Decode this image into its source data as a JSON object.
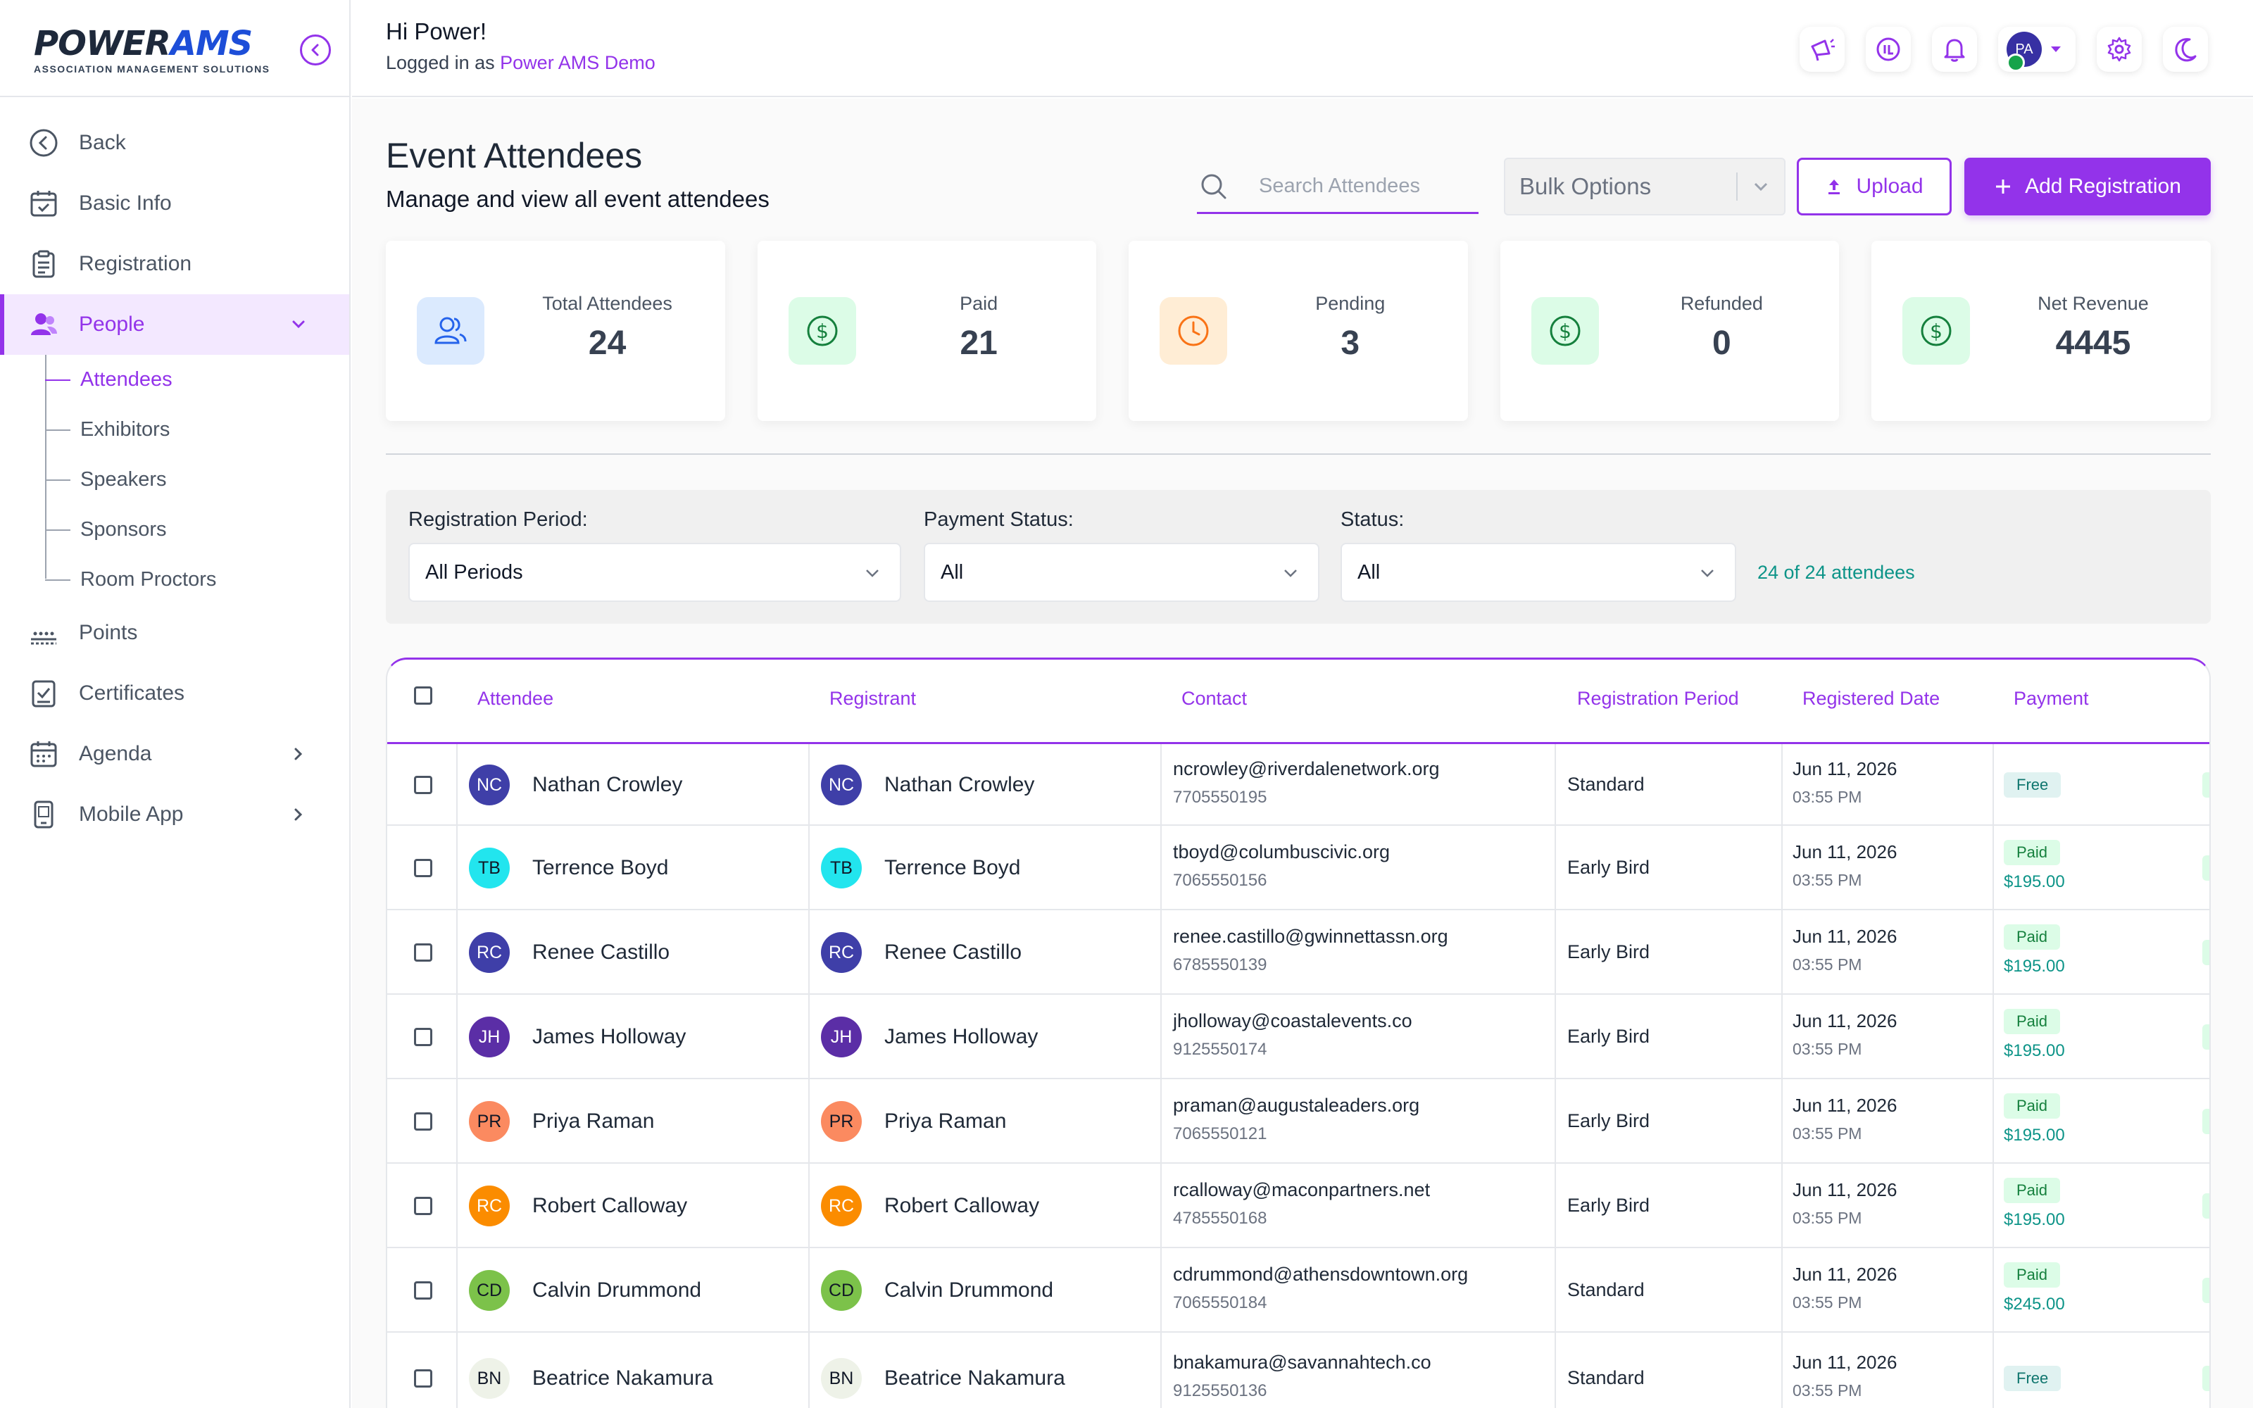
{
  "brand": {
    "name_part1": "POWER",
    "name_part2": "AMS",
    "tagline": "ASSOCIATION MANAGEMENT SOLUTIONS"
  },
  "header": {
    "greeting": "Hi Power!",
    "logged_in_prefix": "Logged in as",
    "logged_in_org": "Power AMS Demo",
    "avatar_initials": "PA"
  },
  "sidebar": {
    "items": [
      {
        "label": "Back",
        "icon": "back-circle-icon"
      },
      {
        "label": "Basic Info",
        "icon": "calendar-check-icon"
      },
      {
        "label": "Registration",
        "icon": "clipboard-icon"
      },
      {
        "label": "People",
        "icon": "people-icon"
      },
      {
        "label": "Points",
        "icon": "points-icon"
      },
      {
        "label": "Certificates",
        "icon": "certificate-icon"
      },
      {
        "label": "Agenda",
        "icon": "calendar-icon"
      },
      {
        "label": "Mobile App",
        "icon": "mobile-icon"
      }
    ],
    "people_sub": [
      "Attendees",
      "Exhibitors",
      "Speakers",
      "Sponsors",
      "Room Proctors"
    ]
  },
  "page": {
    "title": "Event Attendees",
    "subtitle": "Manage and view all event attendees",
    "search_placeholder": "Search Attendees",
    "bulk_label": "Bulk Options",
    "upload_label": "Upload",
    "add_label": "Add Registration"
  },
  "stats": [
    {
      "label": "Total Attendees",
      "value": "24"
    },
    {
      "label": "Paid",
      "value": "21"
    },
    {
      "label": "Pending",
      "value": "3"
    },
    {
      "label": "Refunded",
      "value": "0"
    },
    {
      "label": "Net Revenue",
      "value": "4445"
    }
  ],
  "filters": {
    "period_label": "Registration Period:",
    "period_value": "All Periods",
    "payment_label": "Payment Status:",
    "payment_value": "All",
    "status_label": "Status:",
    "status_value": "All",
    "count_text": "24 of 24 attendees"
  },
  "table": {
    "headers": [
      "Attendee",
      "Registrant",
      "Contact",
      "Registration Period",
      "Registered Date",
      "Payment"
    ],
    "rows": [
      {
        "initials": "NC",
        "name": "Nathan Crowley",
        "email": "ncrowley@riverdalenetwork.org",
        "phone": "7705550195",
        "period": "Standard",
        "date": "Jun 11, 2026",
        "time": "03:55 PM",
        "badge": "Free",
        "amount": "",
        "avatar_bg": "#3f3fa8",
        "avatar_fg": "#ffffff"
      },
      {
        "initials": "TB",
        "name": "Terrence Boyd",
        "email": "tboyd@columbuscivic.org",
        "phone": "7065550156",
        "period": "Early Bird",
        "date": "Jun 11, 2026",
        "time": "03:55 PM",
        "badge": "Paid",
        "amount": "$195.00",
        "avatar_bg": "#22e5ee",
        "avatar_fg": "#111827"
      },
      {
        "initials": "RC",
        "name": "Renee Castillo",
        "email": "renee.castillo@gwinnettassn.org",
        "phone": "6785550139",
        "period": "Early Bird",
        "date": "Jun 11, 2026",
        "time": "03:55 PM",
        "badge": "Paid",
        "amount": "$195.00",
        "avatar_bg": "#3f3fa8",
        "avatar_fg": "#ffffff"
      },
      {
        "initials": "JH",
        "name": "James Holloway",
        "email": "jholloway@coastalevents.co",
        "phone": "9125550174",
        "period": "Early Bird",
        "date": "Jun 11, 2026",
        "time": "03:55 PM",
        "badge": "Paid",
        "amount": "$195.00",
        "avatar_bg": "#5b2ea6",
        "avatar_fg": "#ffffff"
      },
      {
        "initials": "PR",
        "name": "Priya Raman",
        "email": "praman@augustaleaders.org",
        "phone": "7065550121",
        "period": "Early Bird",
        "date": "Jun 11, 2026",
        "time": "03:55 PM",
        "badge": "Paid",
        "amount": "$195.00",
        "avatar_bg": "#fb8a60",
        "avatar_fg": "#111827"
      },
      {
        "initials": "RC",
        "name": "Robert Calloway",
        "email": "rcalloway@maconpartners.net",
        "phone": "4785550168",
        "period": "Early Bird",
        "date": "Jun 11, 2026",
        "time": "03:55 PM",
        "badge": "Paid",
        "amount": "$195.00",
        "avatar_bg": "#fb8c00",
        "avatar_fg": "#ffffff"
      },
      {
        "initials": "CD",
        "name": "Calvin Drummond",
        "email": "cdrummond@athensdowntown.org",
        "phone": "7065550184",
        "period": "Standard",
        "date": "Jun 11, 2026",
        "time": "03:55 PM",
        "badge": "Paid",
        "amount": "$245.00",
        "avatar_bg": "#7cc24a",
        "avatar_fg": "#111827"
      },
      {
        "initials": "BN",
        "name": "Beatrice Nakamura",
        "email": "bnakamura@savannahtech.co",
        "phone": "9125550136",
        "period": "Standard",
        "date": "Jun 11, 2026",
        "time": "03:55 PM",
        "badge": "Free",
        "amount": "",
        "avatar_bg": "#eef2e8",
        "avatar_fg": "#111827"
      }
    ]
  }
}
